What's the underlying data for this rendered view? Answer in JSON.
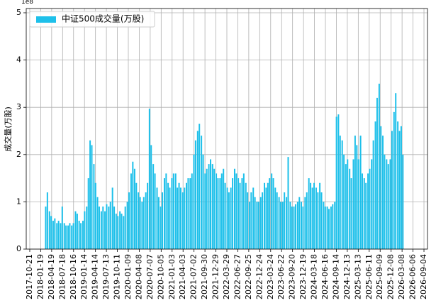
{
  "chart_data": {
    "type": "bar",
    "offset_label": "1e8",
    "ylabel": "成交量(万股)",
    "ylim": [
      0,
      5.09
    ],
    "yticks": [
      0,
      1,
      2,
      3,
      4,
      5
    ],
    "xlim": [
      "2017-09-22",
      "2026-10-03"
    ],
    "xticks": [
      "2017-10-21",
      "2018-01-19",
      "2018-04-19",
      "2018-07-18",
      "2018-10-16",
      "2019-01-14",
      "2019-04-14",
      "2019-07-13",
      "2019-10-11",
      "2020-01-09",
      "2020-04-08",
      "2020-07-07",
      "2020-10-05",
      "2021-01-03",
      "2021-04-03",
      "2021-07-02",
      "2021-09-30",
      "2021-12-29",
      "2022-03-29",
      "2022-06-27",
      "2022-09-25",
      "2022-12-24",
      "2023-03-24",
      "2023-06-22",
      "2023-09-20",
      "2023-12-19",
      "2024-03-18",
      "2024-06-16",
      "2024-09-14",
      "2024-12-13",
      "2025-03-13",
      "2025-06-11",
      "2025-09-09",
      "2025-12-08",
      "2026-03-08",
      "2026-06-06",
      "2026-09-04"
    ],
    "grid": true,
    "legend": "upper left",
    "series": [
      {
        "name": "中证500成交量(万股)",
        "color": "#1ec0ea",
        "x": [
          "2018-03-01",
          "2018-03-15",
          "2018-04-01",
          "2018-04-15",
          "2018-05-01",
          "2018-05-15",
          "2018-06-01",
          "2018-06-15",
          "2018-07-01",
          "2018-07-15",
          "2018-08-01",
          "2018-08-15",
          "2018-09-01",
          "2018-09-15",
          "2018-10-01",
          "2018-10-15",
          "2018-11-01",
          "2018-11-15",
          "2018-12-01",
          "2018-12-15",
          "2019-01-01",
          "2019-01-15",
          "2019-02-01",
          "2019-02-15",
          "2019-03-01",
          "2019-03-15",
          "2019-04-01",
          "2019-04-15",
          "2019-05-01",
          "2019-05-15",
          "2019-06-01",
          "2019-06-15",
          "2019-07-01",
          "2019-07-15",
          "2019-08-01",
          "2019-08-15",
          "2019-09-01",
          "2019-09-15",
          "2019-10-01",
          "2019-10-15",
          "2019-11-01",
          "2019-11-15",
          "2019-12-01",
          "2019-12-15",
          "2020-01-01",
          "2020-01-15",
          "2020-02-01",
          "2020-02-15",
          "2020-03-01",
          "2020-03-15",
          "2020-04-01",
          "2020-04-15",
          "2020-05-01",
          "2020-05-15",
          "2020-06-01",
          "2020-06-15",
          "2020-07-01",
          "2020-07-15",
          "2020-08-01",
          "2020-08-15",
          "2020-09-01",
          "2020-09-15",
          "2020-10-01",
          "2020-10-15",
          "2020-11-01",
          "2020-11-15",
          "2020-12-01",
          "2020-12-15",
          "2021-01-01",
          "2021-01-15",
          "2021-02-01",
          "2021-02-15",
          "2021-03-01",
          "2021-03-15",
          "2021-04-01",
          "2021-04-15",
          "2021-05-01",
          "2021-05-15",
          "2021-06-01",
          "2021-06-15",
          "2021-07-01",
          "2021-07-15",
          "2021-08-01",
          "2021-08-15",
          "2021-09-01",
          "2021-09-15",
          "2021-10-01",
          "2021-10-15",
          "2021-11-01",
          "2021-11-15",
          "2021-12-01",
          "2021-12-15",
          "2022-01-01",
          "2022-01-15",
          "2022-02-01",
          "2022-02-15",
          "2022-03-01",
          "2022-03-15",
          "2022-04-01",
          "2022-04-15",
          "2022-05-01",
          "2022-05-15",
          "2022-06-01",
          "2022-06-15",
          "2022-07-01",
          "2022-07-15",
          "2022-08-01",
          "2022-08-15",
          "2022-09-01",
          "2022-09-15",
          "2022-10-01",
          "2022-10-15",
          "2022-11-01",
          "2022-11-15",
          "2022-12-01",
          "2022-12-15",
          "2023-01-01",
          "2023-01-15",
          "2023-02-01",
          "2023-02-15",
          "2023-03-01",
          "2023-03-15",
          "2023-04-01",
          "2023-04-15",
          "2023-05-01",
          "2023-05-15",
          "2023-06-01",
          "2023-06-15",
          "2023-07-01",
          "2023-07-15",
          "2023-08-01",
          "2023-08-15",
          "2023-09-01",
          "2023-09-15",
          "2023-10-01",
          "2023-10-15",
          "2023-11-01",
          "2023-11-15",
          "2023-12-01",
          "2023-12-15",
          "2024-01-01",
          "2024-01-15",
          "2024-02-01",
          "2024-02-15",
          "2024-03-01",
          "2024-03-15",
          "2024-04-01",
          "2024-04-15",
          "2024-05-01",
          "2024-05-15",
          "2024-06-01",
          "2024-06-15",
          "2024-07-01",
          "2024-07-15",
          "2024-08-01",
          "2024-08-15",
          "2024-09-01",
          "2024-09-15",
          "2024-10-01",
          "2024-10-15",
          "2024-11-01",
          "2024-11-15",
          "2024-12-01",
          "2024-12-15",
          "2025-01-01",
          "2025-01-15",
          "2025-02-01",
          "2025-02-15",
          "2025-03-01",
          "2025-03-15",
          "2025-04-01",
          "2025-04-15",
          "2025-05-01",
          "2025-05-15",
          "2025-06-01",
          "2025-06-15",
          "2025-07-01",
          "2025-07-15",
          "2025-08-01",
          "2025-08-15",
          "2025-09-01",
          "2025-09-15",
          "2025-10-01",
          "2025-10-15",
          "2025-11-01",
          "2025-11-15",
          "2025-12-01",
          "2025-12-15",
          "2026-01-01",
          "2026-01-15",
          "2026-02-01",
          "2026-02-15",
          "2026-03-01",
          "2026-03-15"
        ],
        "values": [
          0.9,
          1.2,
          0.8,
          0.7,
          0.6,
          0.65,
          0.55,
          0.6,
          0.55,
          0.9,
          0.55,
          0.5,
          0.5,
          0.55,
          0.5,
          0.55,
          0.8,
          0.75,
          0.6,
          0.55,
          0.6,
          0.8,
          0.9,
          1.5,
          2.3,
          2.2,
          1.8,
          1.4,
          1.1,
          0.9,
          0.8,
          0.9,
          0.8,
          0.95,
          0.9,
          1.0,
          1.3,
          0.9,
          0.75,
          0.7,
          0.8,
          0.75,
          0.7,
          0.9,
          1.0,
          1.2,
          1.6,
          1.85,
          1.7,
          1.4,
          1.2,
          1.1,
          1.0,
          1.1,
          1.2,
          1.4,
          2.97,
          2.2,
          1.8,
          1.6,
          1.3,
          1.1,
          0.9,
          1.2,
          1.5,
          1.6,
          1.4,
          1.3,
          1.5,
          1.6,
          1.6,
          1.3,
          1.4,
          1.3,
          1.2,
          1.3,
          1.4,
          1.5,
          1.5,
          1.6,
          2.0,
          2.3,
          2.5,
          2.65,
          2.4,
          2.0,
          1.6,
          1.7,
          1.8,
          1.9,
          1.8,
          1.7,
          1.6,
          1.5,
          1.5,
          1.6,
          1.7,
          1.4,
          1.3,
          1.2,
          1.3,
          1.5,
          1.7,
          1.6,
          1.5,
          1.4,
          1.5,
          1.6,
          1.4,
          1.2,
          1.0,
          1.2,
          1.3,
          1.1,
          1.0,
          1.0,
          1.1,
          1.2,
          1.4,
          1.3,
          1.4,
          1.5,
          1.6,
          1.5,
          1.3,
          1.2,
          1.1,
          1.0,
          1.0,
          1.2,
          1.1,
          1.95,
          1.0,
          0.9,
          0.9,
          0.95,
          1.0,
          1.1,
          1.0,
          0.9,
          1.1,
          1.2,
          1.5,
          1.4,
          1.3,
          1.4,
          1.3,
          1.2,
          1.4,
          1.2,
          1.0,
          0.9,
          0.9,
          0.85,
          0.9,
          0.95,
          1.0,
          2.8,
          2.85,
          2.4,
          2.3,
          2.0,
          1.8,
          1.9,
          1.7,
          1.5,
          1.9,
          2.4,
          2.2,
          1.9,
          2.4,
          1.6,
          1.5,
          1.4,
          1.6,
          1.7,
          1.9,
          2.3,
          2.7,
          3.2,
          3.5,
          2.6,
          2.4,
          2.0,
          1.9,
          1.8,
          1.9,
          2.5,
          2.9,
          3.3,
          2.7,
          2.5,
          2.6,
          2.0
        ]
      }
    ]
  }
}
